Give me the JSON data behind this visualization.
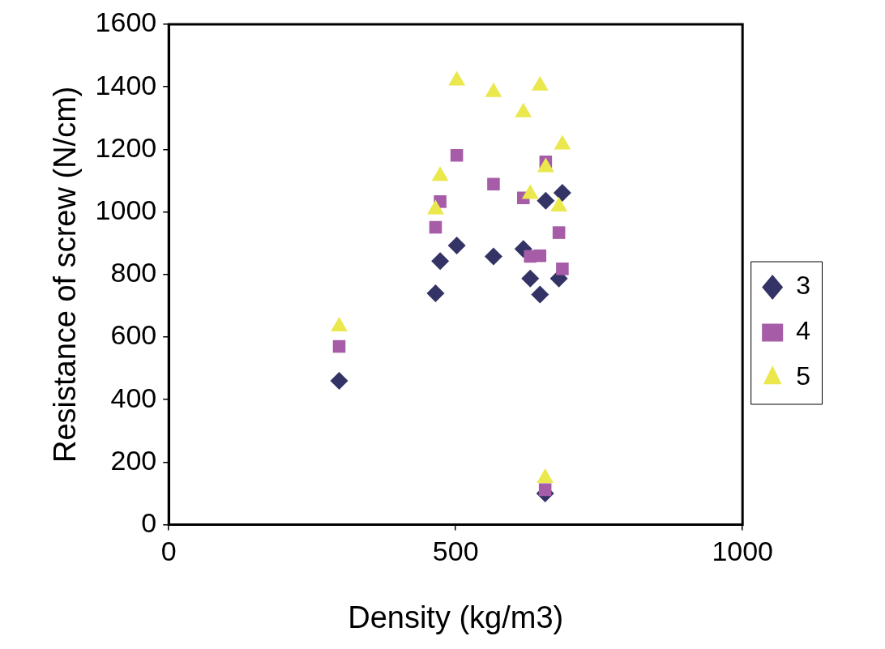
{
  "chart_data": {
    "type": "scatter",
    "xlabel": "Density (kg/m3)",
    "ylabel": "Resistance of screw (N/cm)",
    "xlim": [
      0,
      1000
    ],
    "xticks": [
      0,
      500,
      1000
    ],
    "ylim": [
      0,
      1600
    ],
    "yticks": [
      0,
      200,
      400,
      600,
      800,
      1000,
      1200,
      1400,
      1600
    ],
    "grid": false,
    "legend": "right",
    "series": [
      {
        "name": "3",
        "color": "#333366",
        "marker": "diamond",
        "x": [
          297,
          465,
          473,
          502,
          566,
          618,
          630,
          647,
          657,
          680,
          686,
          656
        ],
        "values": [
          460,
          740,
          843,
          893,
          858,
          882,
          787,
          736,
          1036,
          787,
          1061,
          100
        ]
      },
      {
        "name": "4",
        "color": "#a65ca6",
        "marker": "square",
        "x": [
          297,
          465,
          473,
          502,
          566,
          618,
          630,
          647,
          657,
          680,
          686,
          656
        ],
        "values": [
          570,
          951,
          1033,
          1181,
          1089,
          1045,
          858,
          860,
          1160,
          934,
          818,
          112
        ]
      },
      {
        "name": "5",
        "color": "#eae84d",
        "marker": "triangle",
        "x": [
          297,
          465,
          473,
          502,
          566,
          618,
          630,
          647,
          657,
          680,
          686,
          656
        ],
        "values": [
          634,
          1008,
          1115,
          1420,
          1383,
          1318,
          1057,
          1404,
          1143,
          1017,
          1215,
          149
        ]
      }
    ]
  }
}
